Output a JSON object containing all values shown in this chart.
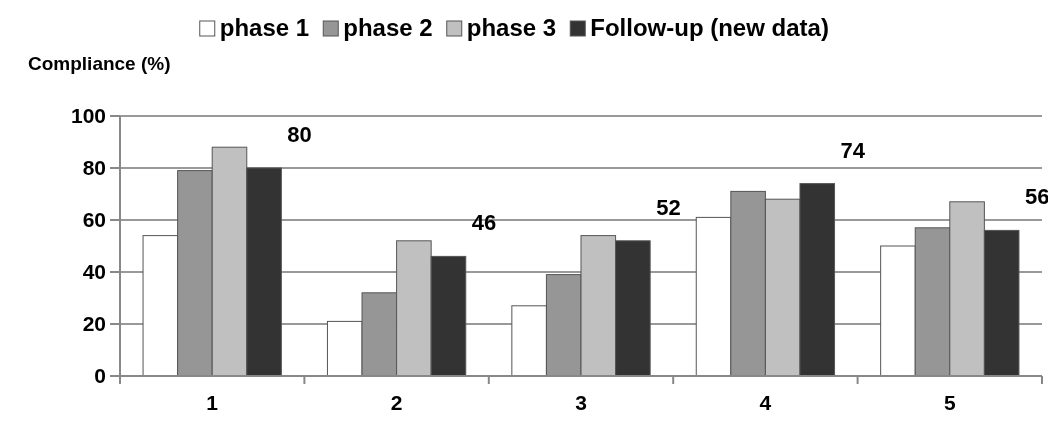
{
  "chart_data": {
    "type": "bar",
    "ylabel": "Compliance (%)",
    "categories": [
      "1",
      "2",
      "3",
      "4",
      "5"
    ],
    "series": [
      {
        "name": "phase 1",
        "color": "#ffffff",
        "values": [
          54,
          21,
          27,
          61,
          50
        ]
      },
      {
        "name": "phase 2",
        "color": "#969696",
        "values": [
          79,
          32,
          39,
          71,
          57
        ]
      },
      {
        "name": "phase 3",
        "color": "#c0c0c0",
        "values": [
          88,
          52,
          54,
          68,
          67
        ]
      },
      {
        "name": "Follow-up (new data)",
        "color": "#333333",
        "values": [
          80,
          46,
          52,
          74,
          56
        ],
        "value_labels": [
          "80",
          "46",
          "52",
          "74",
          "56"
        ]
      }
    ],
    "ylim": [
      0,
      100
    ],
    "yticks": [
      0,
      20,
      40,
      60,
      80,
      100
    ],
    "grid": "y",
    "legend": "top"
  }
}
